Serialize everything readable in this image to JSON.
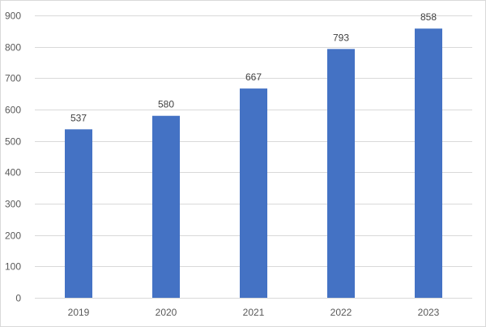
{
  "chart_data": {
    "type": "bar",
    "title": "",
    "xlabel": "",
    "ylabel": "",
    "categories": [
      "2019",
      "2020",
      "2021",
      "2022",
      "2023"
    ],
    "values": [
      537,
      580,
      667,
      793,
      858
    ],
    "data_labels": [
      "537",
      "580",
      "667",
      "793",
      "858"
    ],
    "ylim": [
      0,
      900
    ],
    "yticks": [
      0,
      100,
      200,
      300,
      400,
      500,
      600,
      700,
      800,
      900
    ],
    "grid": true,
    "legend": "none",
    "bar_color": "#4472C4",
    "grid_color": "#d9d9d9"
  }
}
